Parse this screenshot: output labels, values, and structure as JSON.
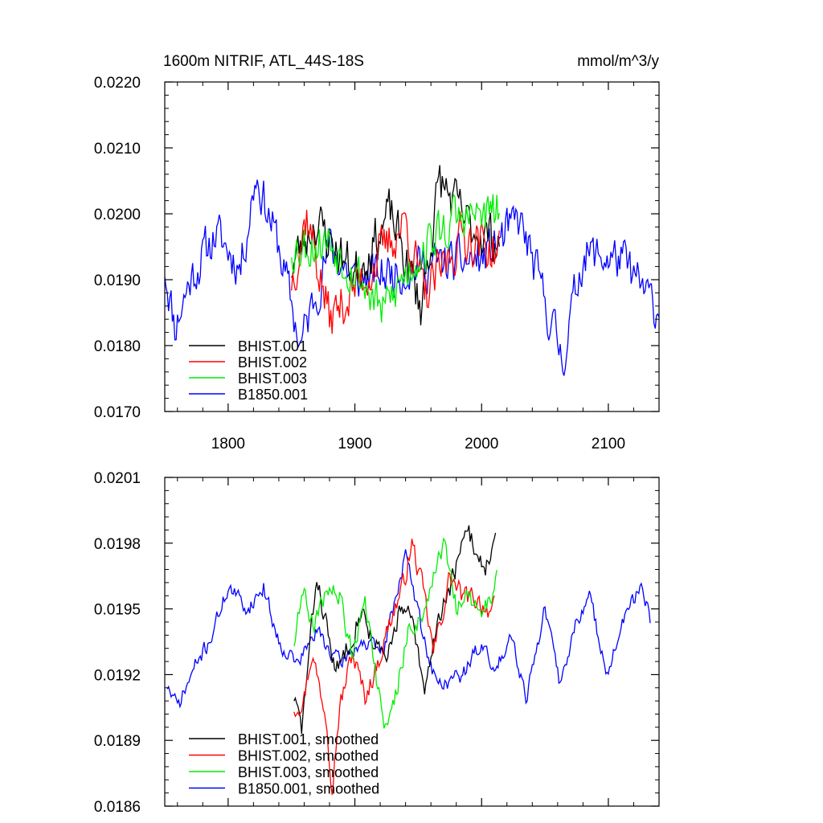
{
  "title_left": "1600m NITRIF, ATL_44S-18S",
  "title_right": "mmol/m^3/y",
  "colors": {
    "BHIST.001": "#000000",
    "BHIST.002": "#ff0000",
    "BHIST.003": "#00ee00",
    "B1850.001": "#0000ff"
  },
  "chart_data": [
    {
      "type": "line",
      "xlim": [
        1750,
        2140
      ],
      "ylim": [
        0.017,
        0.022
      ],
      "xticks": [
        1800,
        1900,
        2000,
        2100
      ],
      "xtick_labels": [
        "1800",
        "1900",
        "2000",
        "2100"
      ],
      "yticks": [
        0.017,
        0.018,
        0.019,
        0.02,
        0.021,
        0.022
      ],
      "ytick_labels": [
        "0.0170",
        "0.0180",
        "0.0190",
        "0.0200",
        "0.0210",
        "0.0220"
      ],
      "legend": [
        "BHIST.001",
        "BHIST.002",
        "BHIST.003",
        "B1850.001"
      ],
      "legend_position": "bottom-left",
      "series": [
        {
          "name": "B1850.001",
          "color": "#0000ff",
          "x_start": 1750,
          "x_end": 2140,
          "keypoints": [
            [
              1750,
              0.0192
            ],
            [
              1758,
              0.0183
            ],
            [
              1770,
              0.019
            ],
            [
              1790,
              0.0197
            ],
            [
              1810,
              0.0192
            ],
            [
              1822,
              0.0206
            ],
            [
              1840,
              0.0195
            ],
            [
              1857,
              0.018
            ],
            [
              1880,
              0.0195
            ],
            [
              1900,
              0.019
            ],
            [
              1950,
              0.0192
            ],
            [
              2000,
              0.0193
            ],
            [
              2030,
              0.0199
            ],
            [
              2064,
              0.0178
            ],
            [
              2080,
              0.0194
            ],
            [
              2110,
              0.0193
            ],
            [
              2140,
              0.0185
            ]
          ],
          "noise": 0.00055,
          "seed": 11
        },
        {
          "name": "BHIST.001",
          "color": "#000000",
          "x_start": 1850,
          "x_end": 2014,
          "keypoints": [
            [
              1850,
              0.0192
            ],
            [
              1868,
              0.0199
            ],
            [
              1900,
              0.0191
            ],
            [
              1928,
              0.02
            ],
            [
              1952,
              0.0186
            ],
            [
              1967,
              0.0205
            ],
            [
              1990,
              0.0198
            ],
            [
              2014,
              0.0196
            ]
          ],
          "noise": 0.0006,
          "seed": 23
        },
        {
          "name": "BHIST.002",
          "color": "#ff0000",
          "x_start": 1850,
          "x_end": 2014,
          "keypoints": [
            [
              1850,
              0.019
            ],
            [
              1862,
              0.02
            ],
            [
              1880,
              0.0184
            ],
            [
              1910,
              0.0191
            ],
            [
              1940,
              0.0199
            ],
            [
              1955,
              0.0187
            ],
            [
              1985,
              0.0197
            ],
            [
              2014,
              0.0194
            ]
          ],
          "noise": 0.0006,
          "seed": 37
        },
        {
          "name": "BHIST.003",
          "color": "#00ee00",
          "x_start": 1850,
          "x_end": 2014,
          "keypoints": [
            [
              1850,
              0.0195
            ],
            [
              1880,
              0.0196
            ],
            [
              1902,
              0.0191
            ],
            [
              1922,
              0.0185
            ],
            [
              1950,
              0.0194
            ],
            [
              1978,
              0.0199
            ],
            [
              2012,
              0.02
            ]
          ],
          "noise": 0.0006,
          "seed": 53
        }
      ]
    },
    {
      "type": "line",
      "xlim": [
        1750,
        2140
      ],
      "ylim": [
        0.0186,
        0.0201
      ],
      "xticks": [
        1800,
        1900,
        2000,
        2100
      ],
      "xtick_labels": [],
      "yticks": [
        0.0186,
        0.0189,
        0.0192,
        0.0195,
        0.0198,
        0.0201
      ],
      "ytick_labels": [
        "0.0186",
        "0.0189",
        "0.0192",
        "0.0195",
        "0.0198",
        "0.0201"
      ],
      "legend": [
        "BHIST.001, smoothed",
        "BHIST.002, smoothed",
        "BHIST.003, smoothed",
        "B1850.001, smoothed"
      ],
      "legend_position": "bottom-left",
      "series": [
        {
          "name": "B1850.001, smoothed",
          "color": "#0000ff",
          "x_start": 1752,
          "x_end": 2133,
          "keypoints": [
            [
              1752,
              0.01915
            ],
            [
              1760,
              0.01905
            ],
            [
              1775,
              0.01925
            ],
            [
              1785,
              0.01935
            ],
            [
              1800,
              0.0196
            ],
            [
              1815,
              0.0195
            ],
            [
              1828,
              0.0196
            ],
            [
              1840,
              0.01935
            ],
            [
              1855,
              0.01925
            ],
            [
              1870,
              0.0194
            ],
            [
              1888,
              0.01925
            ],
            [
              1905,
              0.01935
            ],
            [
              1922,
              0.0193
            ],
            [
              1940,
              0.01975
            ],
            [
              1955,
              0.01935
            ],
            [
              1965,
              0.01915
            ],
            [
              1985,
              0.0192
            ],
            [
              2000,
              0.01935
            ],
            [
              2010,
              0.0192
            ],
            [
              2023,
              0.0194
            ],
            [
              2035,
              0.0191
            ],
            [
              2050,
              0.0195
            ],
            [
              2062,
              0.01915
            ],
            [
              2075,
              0.01945
            ],
            [
              2085,
              0.01955
            ],
            [
              2100,
              0.0192
            ],
            [
              2112,
              0.01945
            ],
            [
              2125,
              0.0196
            ],
            [
              2133,
              0.01945
            ]
          ],
          "noise": 6e-05,
          "seed": 71
        },
        {
          "name": "BHIST.001, smoothed",
          "color": "#000000",
          "x_start": 1852,
          "x_end": 2011,
          "keypoints": [
            [
              1852,
              0.0191
            ],
            [
              1858,
              0.01895
            ],
            [
              1870,
              0.01965
            ],
            [
              1885,
              0.0192
            ],
            [
              1895,
              0.01935
            ],
            [
              1905,
              0.0195
            ],
            [
              1915,
              0.01935
            ],
            [
              1925,
              0.01925
            ],
            [
              1935,
              0.0195
            ],
            [
              1945,
              0.01945
            ],
            [
              1955,
              0.0191
            ],
            [
              1965,
              0.01945
            ],
            [
              1975,
              0.0196
            ],
            [
              1983,
              0.01975
            ],
            [
              1990,
              0.01985
            ],
            [
              1996,
              0.01975
            ],
            [
              2003,
              0.0197
            ],
            [
              2011,
              0.0198
            ]
          ],
          "noise": 8e-05,
          "seed": 83
        },
        {
          "name": "BHIST.002, smoothed",
          "color": "#ff0000",
          "x_start": 1852,
          "x_end": 2010,
          "keypoints": [
            [
              1852,
              0.01905
            ],
            [
              1860,
              0.0191
            ],
            [
              1866,
              0.0193
            ],
            [
              1872,
              0.01915
            ],
            [
              1878,
              0.019
            ],
            [
              1882,
              0.0187
            ],
            [
              1888,
              0.01905
            ],
            [
              1898,
              0.0193
            ],
            [
              1908,
              0.0191
            ],
            [
              1918,
              0.01925
            ],
            [
              1928,
              0.01945
            ],
            [
              1938,
              0.0196
            ],
            [
              1945,
              0.0198
            ],
            [
              1955,
              0.01955
            ],
            [
              1962,
              0.0193
            ],
            [
              1968,
              0.01945
            ],
            [
              1975,
              0.01965
            ],
            [
              1985,
              0.01955
            ],
            [
              1995,
              0.01955
            ],
            [
              2005,
              0.0195
            ],
            [
              2010,
              0.0195
            ]
          ],
          "noise": 8e-05,
          "seed": 97
        },
        {
          "name": "BHIST.003, smoothed",
          "color": "#00ee00",
          "x_start": 1852,
          "x_end": 2012,
          "keypoints": [
            [
              1852,
              0.01935
            ],
            [
              1858,
              0.0196
            ],
            [
              1868,
              0.0194
            ],
            [
              1878,
              0.0196
            ],
            [
              1888,
              0.01955
            ],
            [
              1898,
              0.0193
            ],
            [
              1908,
              0.01955
            ],
            [
              1918,
              0.01915
            ],
            [
              1925,
              0.01895
            ],
            [
              1932,
              0.0191
            ],
            [
              1942,
              0.0194
            ],
            [
              1952,
              0.01945
            ],
            [
              1962,
              0.01965
            ],
            [
              1970,
              0.0198
            ],
            [
              1980,
              0.0195
            ],
            [
              1990,
              0.01955
            ],
            [
              2000,
              0.01945
            ],
            [
              2006,
              0.01955
            ],
            [
              2012,
              0.01965
            ]
          ],
          "noise": 8e-05,
          "seed": 109
        }
      ]
    }
  ]
}
